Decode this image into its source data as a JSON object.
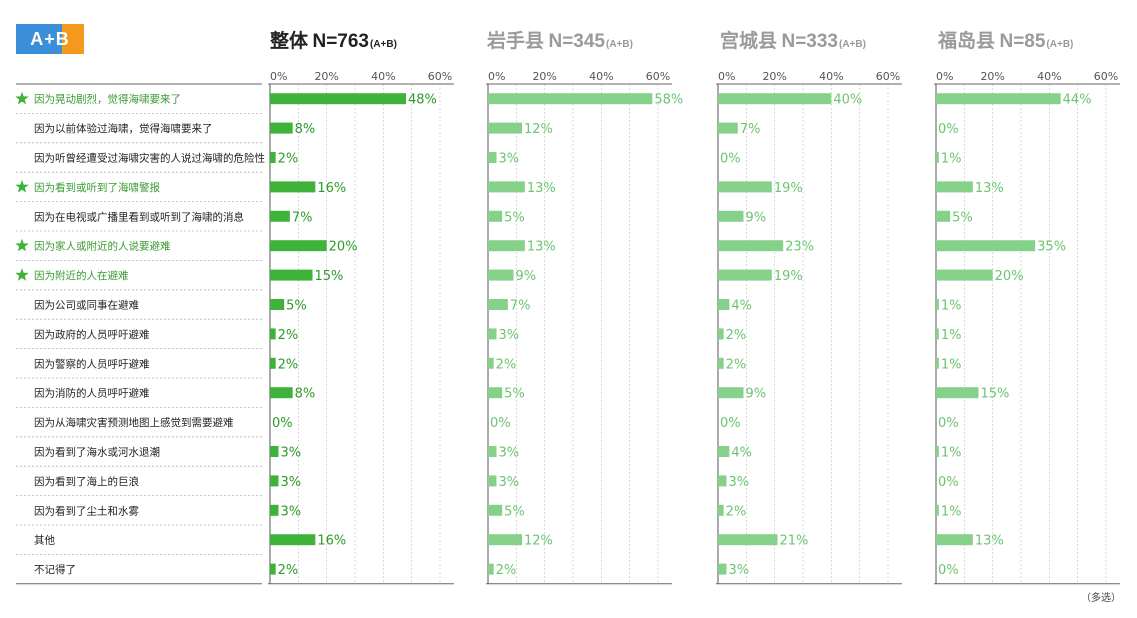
{
  "logo": {
    "text": "A+B"
  },
  "footnote": "（多选）",
  "colors": {
    "primary_bar": "#3fb23a",
    "primary_text": "#2e9a2a",
    "secondary_bar": "#86d18a",
    "secondary_text": "#6cc46f",
    "star": "#3fb23a",
    "star_label": "#3a9a32"
  },
  "chart_data": {
    "type": "bar",
    "orientation": "horizontal",
    "xlim": [
      0,
      60
    ],
    "ticks": [
      "0%",
      "20%",
      "40%",
      "60%"
    ],
    "value_suffix": "%",
    "categories": [
      "因为晃动剧烈，觉得海啸要来了",
      "因为以前体验过海啸，觉得海啸要来了",
      "因为听曾经遭受过海啸灾害的人说过海啸的危险性",
      "因为看到或听到了海啸警报",
      "因为在电视或广播里看到或听到了海啸的消息",
      "因为家人或附近的人说要避难",
      "因为附近的人在避难",
      "因为公司或同事在避难",
      "因为政府的人员呼吁避难",
      "因为警察的人员呼吁避难",
      "因为消防的人员呼吁避难",
      "因为从海啸灾害预测地图上感觉到需要避难",
      "因为看到了海水或河水退潮",
      "因为看到了海上的巨浪",
      "因为看到了尘土和水雾",
      "其他",
      "不记得了"
    ],
    "starred": [
      true,
      false,
      false,
      true,
      false,
      true,
      true,
      false,
      false,
      false,
      false,
      false,
      false,
      false,
      false,
      false,
      false
    ],
    "series": [
      {
        "name": "整体",
        "n_label": "N=763",
        "n_suffix": "(A+B)",
        "values": [
          48,
          8,
          2,
          16,
          7,
          20,
          15,
          5,
          2,
          2,
          8,
          0,
          3,
          3,
          3,
          16,
          2
        ]
      },
      {
        "name": "岩手县",
        "n_label": "N=345",
        "n_suffix": "(A+B)",
        "values": [
          58,
          12,
          3,
          13,
          5,
          13,
          9,
          7,
          3,
          2,
          5,
          0,
          3,
          3,
          5,
          12,
          2
        ]
      },
      {
        "name": "宫城县",
        "n_label": "N=333",
        "n_suffix": "(A+B)",
        "values": [
          40,
          7,
          0,
          19,
          9,
          23,
          19,
          4,
          2,
          2,
          9,
          0,
          4,
          3,
          2,
          21,
          3
        ]
      },
      {
        "name": "福岛县",
        "n_label": "N=85",
        "n_suffix": "(A+B)",
        "values": [
          44,
          0,
          1,
          13,
          5,
          35,
          20,
          1,
          1,
          1,
          15,
          0,
          1,
          0,
          1,
          13,
          0
        ]
      }
    ]
  }
}
